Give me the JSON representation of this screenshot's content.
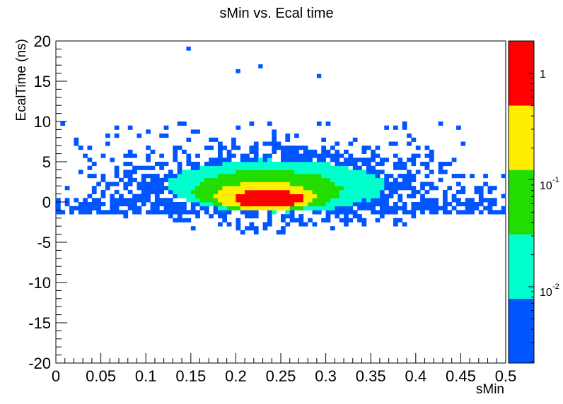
{
  "chart_data": {
    "type": "heatmap",
    "title": "sMin vs. Ecal time",
    "xlabel": "sMin",
    "ylabel": "EcalTime (ns)",
    "xlim": [
      0,
      0.5
    ],
    "ylim": [
      -20,
      20
    ],
    "x_ticks": [
      "0",
      "0.05",
      "0.1",
      "0.15",
      "0.2",
      "0.25",
      "0.3",
      "0.35",
      "0.4",
      "0.45",
      "0.5"
    ],
    "y_ticks": [
      "20",
      "15",
      "10",
      "5",
      "0",
      "-5",
      "-10",
      "-15",
      "-20"
    ],
    "z_scale": "log",
    "palette": {
      "colors": [
        "#0055ff",
        "#00ffcc",
        "#22dd00",
        "#ffee00",
        "#ff0000"
      ],
      "labels": [
        {
          "base": "1",
          "exp": ""
        },
        {
          "base": "10",
          "exp": "-1"
        },
        {
          "base": "10",
          "exp": "-2"
        }
      ]
    },
    "density_levels": [
      {
        "level": 5,
        "color": "#ff0000",
        "x": [
          0.195,
          0.275
        ],
        "y": [
          -0.6,
          1.5
        ]
      },
      {
        "level": 4,
        "color": "#ffee00",
        "x": [
          0.175,
          0.29
        ],
        "y": [
          -1.0,
          2.5
        ]
      },
      {
        "level": 3,
        "color": "#22dd00",
        "x": [
          0.15,
          0.32
        ],
        "y": [
          -1.2,
          4.0
        ]
      },
      {
        "level": 2,
        "color": "#00ffcc",
        "x": [
          0.12,
          0.37
        ],
        "y": [
          -1.3,
          5.3
        ]
      }
    ]
  }
}
